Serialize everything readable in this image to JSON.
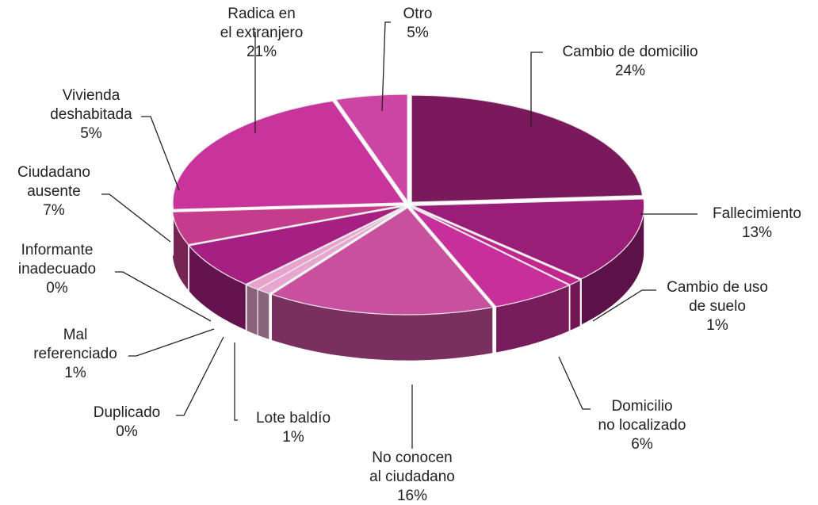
{
  "chart_data": {
    "type": "pie",
    "categories": [
      [
        "Cambio de domicilio"
      ],
      [
        "Fallecimiento"
      ],
      [
        "Cambio de uso",
        "de suelo"
      ],
      [
        "Domicilio",
        "no localizado"
      ],
      [
        "No conocen",
        "al ciudadano"
      ],
      [
        "Lote baldío"
      ],
      [
        "Duplicado"
      ],
      [
        "Mal",
        "referenciado"
      ],
      [
        "Informante",
        "inadecuado"
      ],
      [
        "Ciudadano",
        "ausente"
      ],
      [
        "Vivienda",
        "deshabitada"
      ],
      [
        "Radica en",
        "el extranjero"
      ],
      [
        "Otro"
      ]
    ],
    "values": [
      24,
      13,
      1,
      6,
      16,
      1,
      0,
      1,
      0,
      7,
      5,
      21,
      5
    ],
    "value_labels": [
      "24%",
      "13%",
      "1%",
      "6%",
      "16%",
      "1%",
      "0%",
      "1%",
      "0%",
      "7%",
      "5%",
      "21%",
      "5%"
    ],
    "colors": [
      "#7a1a5c",
      "#9a1e78",
      "#c0268c",
      "#c7309a",
      "#c9509f",
      "#e6a6cf",
      "#d88bbd",
      "#e8a2cd",
      "#d372b3",
      "#a61f82",
      "#c63c8c",
      "#c8339c",
      "#cd45a3"
    ]
  }
}
